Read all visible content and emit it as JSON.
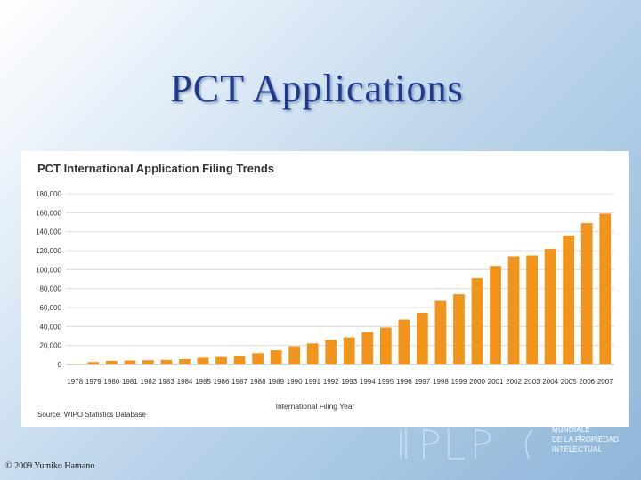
{
  "slide": {
    "title": "PCT Applications",
    "copyright": "© 2009 Yumiko Hamano"
  },
  "logo": {
    "lines": [
      "Mundiale",
      "de la Propiedad",
      "Intelectual"
    ]
  },
  "colors": {
    "bar": "#f2941b",
    "grid": "#d9d9d9",
    "title": "#1f3a8c"
  },
  "chart_data": {
    "type": "bar",
    "title": "PCT International Application Filing Trends",
    "xlabel": "International Filing Year",
    "ylabel": "",
    "source": "Source: WIPO Statistics Database",
    "ylim": [
      0,
      180000
    ],
    "yticks": [
      0,
      20000,
      40000,
      60000,
      80000,
      100000,
      120000,
      140000,
      160000,
      180000
    ],
    "ytick_labels": [
      "0",
      "20,000",
      "40,000",
      "60,000",
      "80,000",
      "100,000",
      "120,000",
      "140,000",
      "160,000",
      "180,000"
    ],
    "grid": true,
    "legend": "none",
    "categories": [
      "1978",
      "1979",
      "1980",
      "1981",
      "1982",
      "1983",
      "1984",
      "1985",
      "1986",
      "1987",
      "1988",
      "1989",
      "1990",
      "1991",
      "1992",
      "1993",
      "1994",
      "1995",
      "1996",
      "1997",
      "1998",
      "1999",
      "2000",
      "2001",
      "2002",
      "2003",
      "2004",
      "2005",
      "2006",
      "2007"
    ],
    "values": [
      500,
      2600,
      3800,
      4200,
      4500,
      4800,
      5600,
      7100,
      7900,
      9200,
      11900,
      14900,
      19200,
      22200,
      25900,
      28600,
      34100,
      38900,
      47300,
      54400,
      67000,
      74000,
      90900,
      103900,
      114000,
      114800,
      121800,
      136000,
      149000,
      159000
    ]
  }
}
